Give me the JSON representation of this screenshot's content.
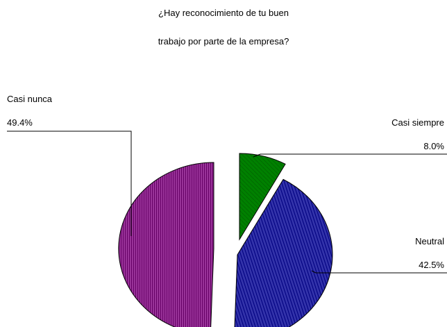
{
  "chart_data": {
    "type": "pie",
    "title_lines": [
      "¿Hay reconocimiento de tu buen",
      "trabajo por parte de la empresa?"
    ],
    "series": [
      {
        "name": "Casi siempre",
        "value": 8.0,
        "label": "8.0%",
        "color": "#008000",
        "exploded": true
      },
      {
        "name": "Neutral",
        "value": 42.5,
        "label": "42.5%",
        "color": "#000080",
        "exploded": true
      },
      {
        "name": "Casi nunca",
        "value": 49.4,
        "label": "49.4%",
        "color": "#800080",
        "exploded": true
      }
    ],
    "legend": "none"
  }
}
